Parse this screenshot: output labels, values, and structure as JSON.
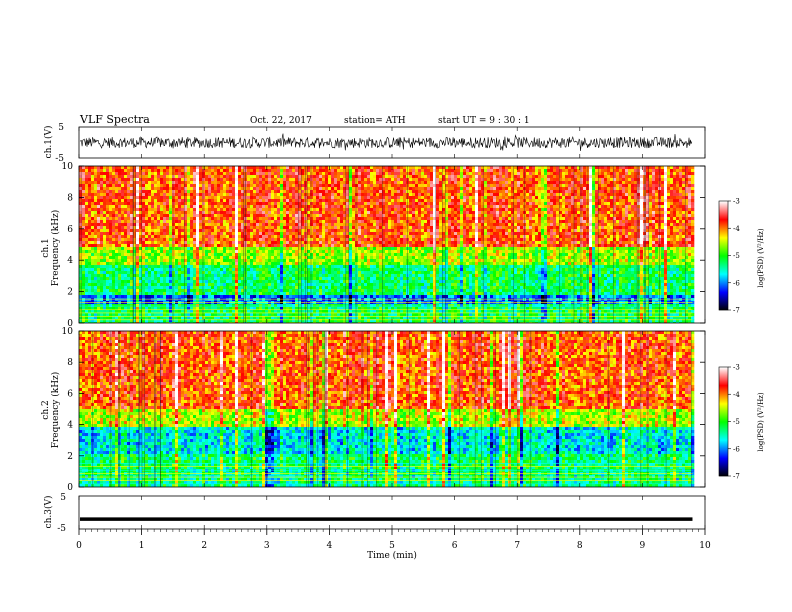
{
  "header": {
    "title": "VLF  Spectra",
    "date": "Oct. 22, 2017",
    "station": "station= ATH",
    "start": "start  UT  =    9  : 30 : 1"
  },
  "chart_data": [
    {
      "type": "line",
      "panel": "ch1-waveform",
      "ylabel": "ch.1(V)",
      "ylim": [
        -5,
        5
      ],
      "yticks": [
        "5",
        "-5"
      ],
      "signal": "dense black noise waveform, amplitude about ±2 V"
    },
    {
      "type": "heatmap",
      "panel": "ch1-spectrogram",
      "ylabel_lines": [
        "ch.1",
        "Frequency  (kHz)"
      ],
      "ylim": [
        0,
        10
      ],
      "yticks": [
        "0",
        "2",
        "4",
        "6",
        "8",
        "10"
      ],
      "colorbar": {
        "label": "log(PSD) (V²/Hz)",
        "ticks": [
          "-3",
          "-4",
          "-5",
          "-6",
          "-7"
        ],
        "range": [
          -7,
          -3
        ]
      },
      "bands_khz": [
        {
          "from": 4.8,
          "to": 10,
          "level": -3.8
        },
        {
          "from": 3.6,
          "to": 4.8,
          "level": -4.6
        },
        {
          "from": 1.8,
          "to": 3.6,
          "level": -5.2
        },
        {
          "from": 1.2,
          "to": 1.8,
          "level": -6.0
        },
        {
          "from": 0,
          "to": 1.2,
          "level": -5.2
        }
      ]
    },
    {
      "type": "heatmap",
      "panel": "ch2-spectrogram",
      "ylabel_lines": [
        "ch.2",
        "Frequency  (kHz)"
      ],
      "ylim": [
        0,
        10
      ],
      "yticks": [
        "0",
        "2",
        "4",
        "6",
        "8",
        "10"
      ],
      "colorbar": {
        "label": "log(PSD) (V²/Hz)",
        "ticks": [
          "-3",
          "-4",
          "-5",
          "-6",
          "-7"
        ],
        "range": [
          -7,
          -3
        ]
      },
      "bands_khz": [
        {
          "from": 5.0,
          "to": 10,
          "level": -3.8
        },
        {
          "from": 3.8,
          "to": 5.0,
          "level": -4.5
        },
        {
          "from": 2.2,
          "to": 3.8,
          "level": -5.6
        },
        {
          "from": 1.2,
          "to": 2.2,
          "level": -5.2
        },
        {
          "from": 0,
          "to": 1.2,
          "level": -5.3
        }
      ]
    },
    {
      "type": "line",
      "panel": "ch3-waveform",
      "ylabel": "ch.3(V)",
      "ylim": [
        -5,
        5
      ],
      "yticks": [
        "5",
        "-5"
      ],
      "signal": "nearly constant trace at about -2 V"
    }
  ],
  "x_axis": {
    "label": "Time  (min)",
    "range": [
      0,
      10
    ],
    "ticks": [
      "0",
      "1",
      "2",
      "3",
      "4",
      "5",
      "6",
      "7",
      "8",
      "9",
      "10"
    ],
    "data_end_min": 9.8
  },
  "colors": {
    "colormap": [
      "#000000",
      "#0000ff",
      "#00ffff",
      "#00ff00",
      "#ffff00",
      "#ff0000",
      "#ffffff"
    ],
    "line": "#000000"
  }
}
